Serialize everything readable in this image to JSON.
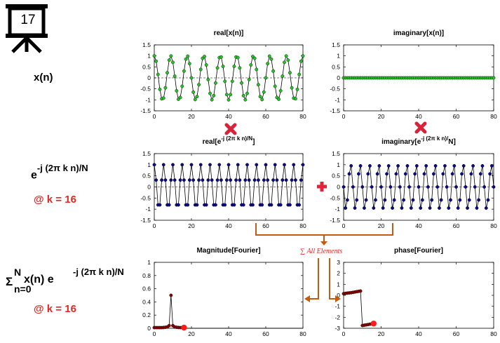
{
  "slide": {
    "number": "17"
  },
  "row_labels": {
    "xn": "x(n)",
    "kernel_base": "e",
    "kernel_exp": "-j (2π k n)/N",
    "k_value_1": "@ k = 16",
    "sum_sigma": "Σ",
    "sum_upper": "N",
    "sum_lower": "n=0",
    "sum_body": "x(n) e",
    "sum_exp": "-j (2π k n)/N",
    "k_value_2": "@ k = 16"
  },
  "annotations": {
    "sum_all": "∑ All Elements"
  },
  "colors": {
    "green": "#22c322",
    "navy": "#0a0a8a",
    "red": "#e8231e",
    "arrow": "#c55a11",
    "cross": "#d9233a",
    "plus": "#e0243a"
  },
  "chart_data": [
    {
      "id": "real-x",
      "type": "line",
      "title": "real[x(n)]",
      "xlim": [
        0,
        80
      ],
      "ylim": [
        -1.5,
        1.5
      ],
      "xticks": [
        0,
        20,
        40,
        60,
        80
      ],
      "yticks": [
        -1.5,
        -1,
        -0.5,
        0,
        0.5,
        1,
        1.5
      ],
      "yticklabels": [
        "-1.5",
        "-1",
        "-0.5",
        "0",
        "0.5",
        "1",
        "1.5"
      ],
      "series": [
        {
          "color": "#22c322",
          "marker": "dot",
          "formula": "cos(2π·9n/80)",
          "n": [
            0,
            80
          ]
        }
      ]
    },
    {
      "id": "imag-x",
      "type": "line",
      "title": "imaginary[x(n)]",
      "xlim": [
        0,
        80
      ],
      "ylim": [
        -1.5,
        1.5
      ],
      "xticks": [
        0,
        20,
        40,
        60,
        80
      ],
      "yticks": [
        -1.5,
        -1,
        -0.5,
        0,
        0.5,
        1,
        1.5
      ],
      "yticklabels": [
        "-1.5",
        "-1",
        "-0.5",
        "0",
        "0.5",
        "1",
        "1.5"
      ],
      "series": [
        {
          "color": "#22c322",
          "marker": "dot",
          "formula": "0",
          "n": [
            0,
            80
          ]
        }
      ]
    },
    {
      "id": "real-kernel",
      "type": "line",
      "title": "real[e",
      "title_sup": "-j (2π k n)/N",
      "title_end": "]",
      "xlim": [
        0,
        80
      ],
      "ylim": [
        -1.5,
        1.5
      ],
      "xticks": [
        0,
        20,
        40,
        60,
        80
      ],
      "yticks": [
        -1.5,
        -1,
        -0.5,
        0,
        0.5,
        1,
        1.5
      ],
      "yticklabels": [
        "-1.5",
        "-1",
        "-0.5",
        "0",
        "0.5",
        "1",
        "1.5"
      ],
      "series": [
        {
          "color": "#0a0a8a",
          "marker": "dot",
          "formula": "cos(2π·16n/80)",
          "n": [
            0,
            80
          ]
        }
      ]
    },
    {
      "id": "imag-kernel",
      "type": "line",
      "title": "imaginary[e",
      "title_sup": "-j (2π k n)/",
      "title_end": "N]",
      "xlim": [
        0,
        80
      ],
      "ylim": [
        -1.5,
        1.5
      ],
      "xticks": [
        0,
        20,
        40,
        60,
        80
      ],
      "yticks": [
        -1.5,
        -1,
        -0.5,
        0,
        0.5,
        1,
        1.5
      ],
      "yticklabels": [
        "-1.5",
        "-1",
        "-0.5",
        "0",
        "0.5",
        "1",
        "1.5"
      ],
      "series": [
        {
          "color": "#0a0a8a",
          "marker": "dot",
          "formula": "-sin(2π·16n/80)",
          "n": [
            0,
            80
          ]
        }
      ]
    },
    {
      "id": "magnitude",
      "type": "line",
      "title": "Magnitude[Fourier]",
      "xlim": [
        0,
        80
      ],
      "ylim": [
        0,
        1
      ],
      "xticks": [
        0,
        20,
        40,
        60,
        80
      ],
      "yticks": [
        0,
        0.2,
        0.4,
        0.6,
        0.8,
        1
      ],
      "yticklabels": [
        "0",
        "0.2",
        "0.4",
        "0.6",
        "0.8",
        "1"
      ],
      "series": [
        {
          "color": "#8b0000",
          "marker": "dot",
          "x": [
            0,
            1,
            2,
            3,
            4,
            5,
            6,
            7,
            8,
            9,
            10,
            11,
            12,
            13,
            14,
            15,
            16
          ],
          "y": [
            0.01,
            0.01,
            0.01,
            0.01,
            0.01,
            0.012,
            0.015,
            0.02,
            0.04,
            0.5,
            0.04,
            0.02,
            0.015,
            0.012,
            0.01,
            0.01,
            0.01
          ]
        },
        {
          "color": "#000000",
          "marker": "none",
          "x": [
            16,
            80
          ],
          "y": [
            0,
            0
          ]
        }
      ],
      "highlight": {
        "x": 16,
        "y": 0.01
      }
    },
    {
      "id": "phase",
      "type": "line",
      "title": "phase[Fourier]",
      "xlim": [
        0,
        80
      ],
      "ylim": [
        -3,
        3
      ],
      "xticks": [
        0,
        20,
        40,
        60,
        80
      ],
      "yticks": [
        -3,
        -2,
        -1,
        0,
        1,
        2,
        3
      ],
      "yticklabels": [
        "-3",
        "-2",
        "-1",
        "0",
        "1",
        "2",
        "3"
      ],
      "series": [
        {
          "color": "#8b0000",
          "marker": "dot",
          "x": [
            0,
            1,
            2,
            3,
            4,
            5,
            6,
            7,
            8,
            9,
            10,
            11,
            12,
            13,
            14,
            15,
            16
          ],
          "y": [
            0.15,
            0.18,
            0.2,
            0.22,
            0.24,
            0.27,
            0.3,
            0.33,
            0.36,
            0.39,
            -2.75,
            -2.72,
            -2.69,
            -2.66,
            -2.63,
            -2.6,
            -2.57
          ]
        }
      ],
      "highlight": {
        "x": 16,
        "y": -2.57
      }
    }
  ]
}
